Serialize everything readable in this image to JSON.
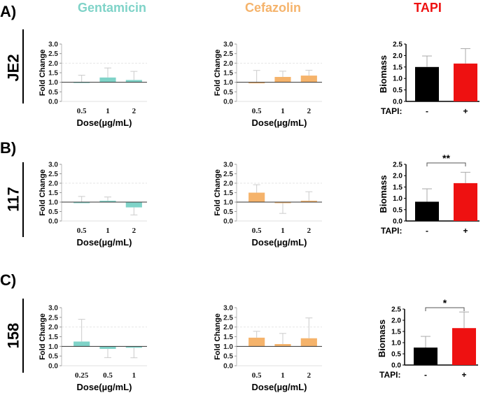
{
  "columns": {
    "gentamicin": {
      "title": "Gentamicin",
      "color": "#7fd3c8"
    },
    "cefazolin": {
      "title": "Cefazolin",
      "color": "#f5b36b"
    },
    "tapi": {
      "title": "TAPI",
      "color": "#ee1111"
    }
  },
  "rows": [
    {
      "panel": "A)",
      "strain": "JE2"
    },
    {
      "panel": "B)",
      "strain": "117"
    },
    {
      "panel": "C)",
      "strain": "158"
    }
  ],
  "labels": {
    "fold_change": "Fold Change",
    "dose": "Dose(µg/mL)",
    "biomass": "Biomass",
    "tapi_row": "TAPI:"
  },
  "chart_data": [
    {
      "id": "gent-je2",
      "type": "bar",
      "ylabel": "Fold Change",
      "xlabel": "Dose(µg/mL)",
      "ylim": [
        0,
        3
      ],
      "yticks": [
        "0.0",
        "0.5",
        "1.0",
        "1.5",
        "2.0",
        "2.5",
        "3.0"
      ],
      "categories": [
        "0.5",
        "1",
        "2"
      ],
      "values": [
        1.02,
        1.25,
        1.12
      ],
      "errors": [
        0.35,
        0.5,
        0.45
      ],
      "color": "#7fd3c8"
    },
    {
      "id": "cef-je2",
      "type": "bar",
      "ylabel": "Fold Change",
      "xlabel": "Dose(µg/mL)",
      "ylim": [
        0,
        3
      ],
      "yticks": [
        "0.0",
        "0.5",
        "1.0",
        "1.5",
        "2.0",
        "2.5",
        "3.0"
      ],
      "categories": [
        "0.5",
        "1",
        "2"
      ],
      "values": [
        1.0,
        1.28,
        1.35
      ],
      "errors": [
        0.62,
        0.3,
        0.28
      ],
      "color": "#f5b36b"
    },
    {
      "id": "tapi-je2",
      "type": "bar",
      "ylabel": "Biomass",
      "xlabel": "TAPI:",
      "ylim": [
        0,
        2.5
      ],
      "yticks": [
        "0.0",
        "0.5",
        "1.0",
        "1.5",
        "2.0",
        "2.5"
      ],
      "categories": [
        "-",
        "+"
      ],
      "values": [
        1.5,
        1.65
      ],
      "errors": [
        0.48,
        0.65
      ],
      "colors": [
        "#000000",
        "#ee1111"
      ]
    },
    {
      "id": "gent-117",
      "type": "bar",
      "ylabel": "Fold Change",
      "xlabel": "Dose(µg/mL)",
      "ylim": [
        0,
        3
      ],
      "yticks": [
        "0.0",
        "0.5",
        "1.0",
        "1.5",
        "2.0",
        "2.5",
        "3.0"
      ],
      "categories": [
        "0.5",
        "1",
        "2"
      ],
      "values": [
        1.0,
        1.07,
        0.72
      ],
      "errors": [
        0.3,
        0.2,
        0.4
      ],
      "color": "#7fd3c8"
    },
    {
      "id": "cef-117",
      "type": "bar",
      "ylabel": "Fold Change",
      "xlabel": "Dose(µg/mL)",
      "ylim": [
        0,
        3
      ],
      "yticks": [
        "0.0",
        "0.5",
        "1.0",
        "1.5",
        "2.0",
        "2.5",
        "3.0"
      ],
      "categories": [
        "0.5",
        "1",
        "2"
      ],
      "values": [
        1.5,
        0.95,
        1.07
      ],
      "errors": [
        0.42,
        0.55,
        0.48
      ],
      "color": "#f5b36b"
    },
    {
      "id": "tapi-117",
      "type": "bar",
      "ylabel": "Biomass",
      "xlabel": "TAPI:",
      "ylim": [
        0,
        2.5
      ],
      "yticks": [
        "0.0",
        "0.5",
        "1.0",
        "1.5",
        "2.0",
        "2.5"
      ],
      "categories": [
        "-",
        "+"
      ],
      "values": [
        0.85,
        1.67
      ],
      "errors": [
        0.57,
        0.48
      ],
      "colors": [
        "#000000",
        "#ee1111"
      ],
      "significance": "**"
    },
    {
      "id": "gent-158",
      "type": "bar",
      "ylabel": "Fold Change",
      "xlabel": "Dose(µg/mL)",
      "ylim": [
        0,
        3
      ],
      "yticks": [
        "0.0",
        "0.5",
        "1.0",
        "1.5",
        "2.0",
        "2.5",
        "3.0"
      ],
      "categories": [
        "0.25",
        "0.5",
        "1"
      ],
      "values": [
        1.25,
        0.87,
        0.93
      ],
      "errors": [
        1.15,
        0.45,
        0.52
      ],
      "color": "#7fd3c8"
    },
    {
      "id": "cef-158",
      "type": "bar",
      "ylabel": "Fold Change",
      "xlabel": "Dose(µg/mL)",
      "ylim": [
        0,
        3
      ],
      "yticks": [
        "0.0",
        "0.5",
        "1.0",
        "1.5",
        "2.0",
        "2.5",
        "3.0"
      ],
      "categories": [
        "0.5",
        "1",
        "2"
      ],
      "values": [
        1.45,
        1.12,
        1.42
      ],
      "errors": [
        0.33,
        0.55,
        1.05
      ],
      "color": "#f5b36b"
    },
    {
      "id": "tapi-158",
      "type": "bar",
      "ylabel": "Biomass",
      "xlabel": "TAPI:",
      "ylim": [
        0,
        2.5
      ],
      "yticks": [
        "0.0",
        "0.5",
        "1.0",
        "1.5",
        "2.0",
        "2.5"
      ],
      "categories": [
        "-",
        "+"
      ],
      "values": [
        0.78,
        1.65
      ],
      "errors": [
        0.5,
        0.72
      ],
      "colors": [
        "#000000",
        "#ee1111"
      ],
      "significance": "*"
    }
  ]
}
